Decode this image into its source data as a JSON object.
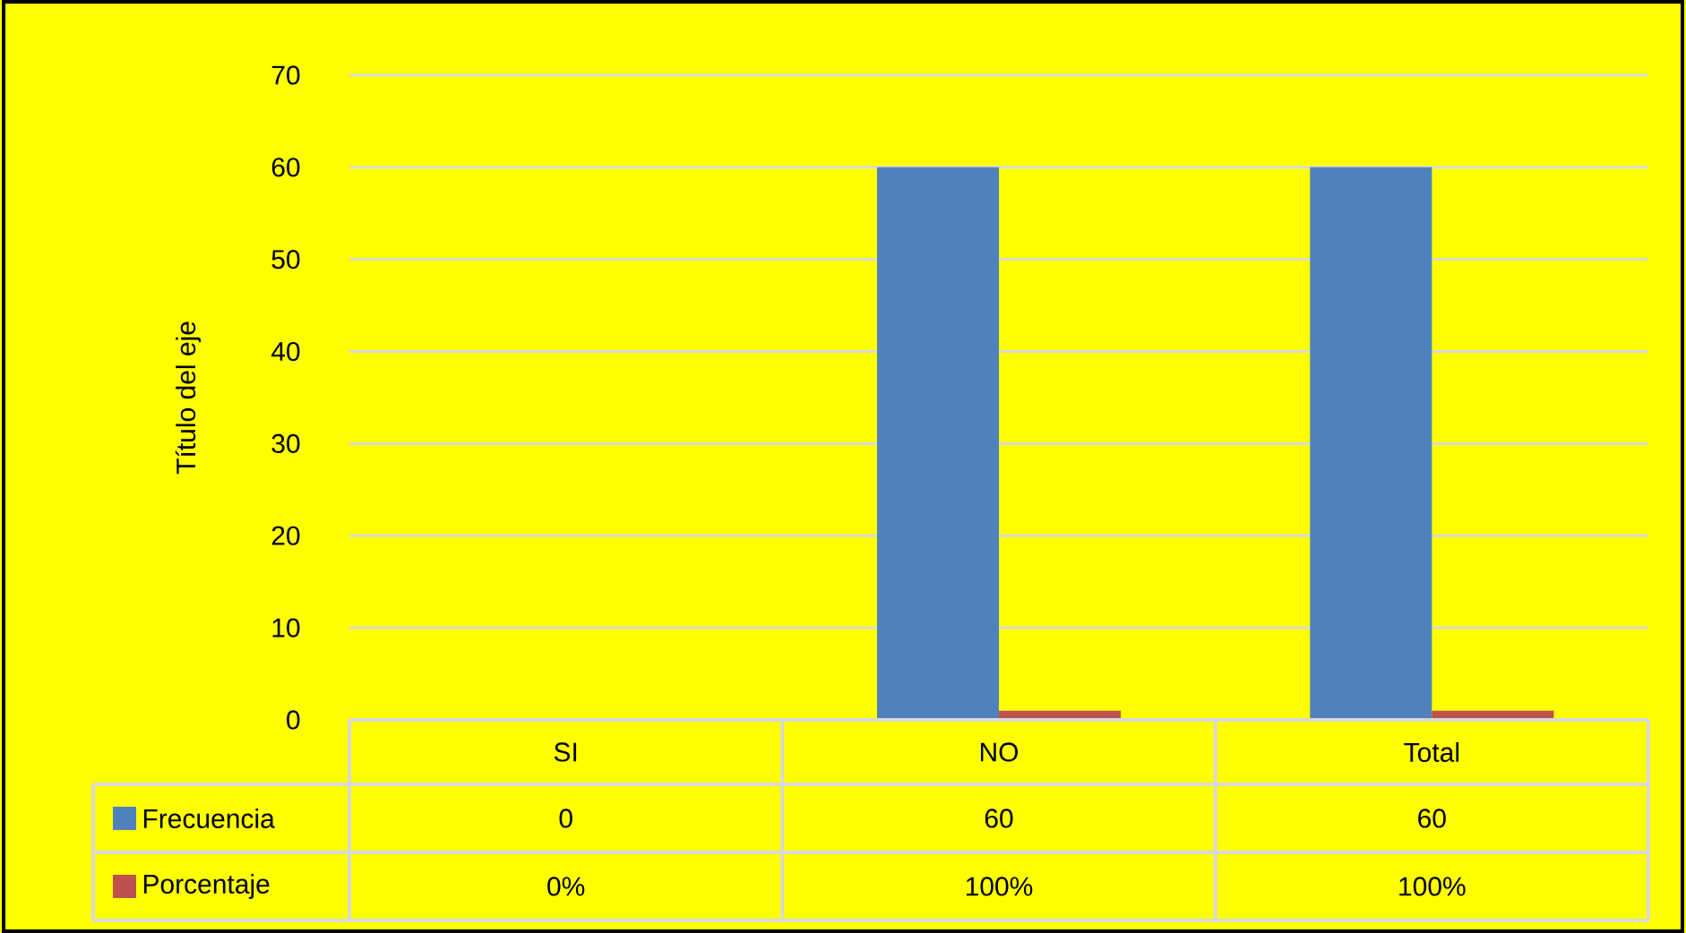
{
  "chart_data": {
    "type": "bar",
    "ylabel": "Título del eje",
    "categories": [
      "SI",
      "NO",
      "Total"
    ],
    "series": [
      {
        "name": "Frecuencia",
        "color": "#4f81bd",
        "values": [
          0,
          60,
          60
        ],
        "value_labels": [
          "0",
          "60",
          "60"
        ]
      },
      {
        "name": "Porcentaje",
        "color": "#c0504d",
        "values": [
          0,
          1,
          1
        ],
        "value_labels": [
          "0%",
          "100%",
          "100%"
        ]
      }
    ],
    "ylim": [
      0,
      70
    ],
    "yticks": [
      0,
      10,
      20,
      30,
      40,
      50,
      60,
      70
    ],
    "grid": "y",
    "legend": "bottom"
  }
}
